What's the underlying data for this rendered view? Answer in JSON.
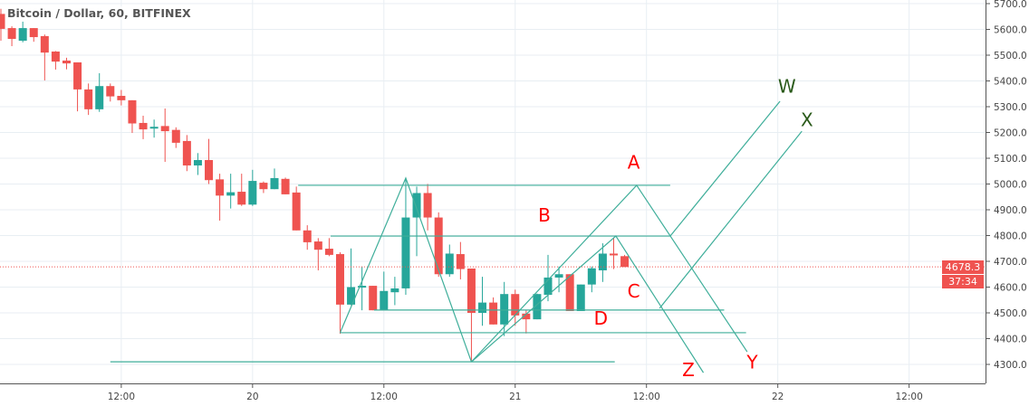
{
  "header": {
    "title": "Bitcoin / Dollar, 60, BITFINEX"
  },
  "colors": {
    "up": "#26a69a",
    "down": "#ef5350",
    "drawing": "#3fae9a",
    "label_red": "#ff0000",
    "label_green": "#2a5a1a",
    "grid": "#e8eef3"
  },
  "price_label": {
    "last": "4678.3",
    "countdown": "37:34"
  },
  "chart_data": {
    "type": "candlestick",
    "symbol": "Bitcoin / Dollar",
    "interval": "60",
    "exchange": "BITFINEX",
    "ylim": [
      4260,
      5710
    ],
    "y_ticks": [
      "4300.0",
      "4400.0",
      "4500.0",
      "4600.0",
      "4700.0",
      "4800.0",
      "4900.0",
      "5000.0",
      "5100.0",
      "5200.0",
      "5300.0",
      "5400.0",
      "5500.0",
      "5600.0",
      "5700.0"
    ],
    "x_ticks": [
      {
        "t": "19 12:00",
        "label": "12:00"
      },
      {
        "t": "20 00:00",
        "label": "20"
      },
      {
        "t": "20 12:00",
        "label": "12:00"
      },
      {
        "t": "21 00:00",
        "label": "21"
      },
      {
        "t": "21 12:00",
        "label": "12:00"
      },
      {
        "t": "22 00:00",
        "label": "22"
      },
      {
        "t": "22 12:00",
        "label": "12:00"
      }
    ],
    "last_price": 4678.3,
    "candles": [
      [
        "19 01:00",
        5660,
        5680,
        5556,
        5602
      ],
      [
        "19 02:00",
        5605,
        5612,
        5535,
        5563
      ],
      [
        "19 03:00",
        5556,
        5630,
        5550,
        5605
      ],
      [
        "19 04:00",
        5605,
        5605,
        5552,
        5570
      ],
      [
        "19 05:00",
        5574,
        5580,
        5402,
        5510
      ],
      [
        "19 06:00",
        5514,
        5516,
        5444,
        5475
      ],
      [
        "19 07:00",
        5479,
        5490,
        5445,
        5468
      ],
      [
        "19 08:00",
        5472,
        5472,
        5282,
        5367
      ],
      [
        "19 09:00",
        5367,
        5390,
        5268,
        5290
      ],
      [
        "19 10:00",
        5290,
        5430,
        5280,
        5380
      ],
      [
        "19 11:00",
        5380,
        5390,
        5320,
        5340
      ],
      [
        "19 12:00",
        5342,
        5365,
        5305,
        5325
      ],
      [
        "19 13:00",
        5325,
        5325,
        5198,
        5235
      ],
      [
        "19 14:00",
        5237,
        5265,
        5174,
        5212
      ],
      [
        "19 15:00",
        5215,
        5250,
        5180,
        5222
      ],
      [
        "19 16:00",
        5225,
        5293,
        5086,
        5205
      ],
      [
        "19 17:00",
        5210,
        5220,
        5140,
        5160
      ],
      [
        "19 18:00",
        5167,
        5190,
        5050,
        5072
      ],
      [
        "19 19:00",
        5072,
        5120,
        5035,
        5093
      ],
      [
        "19 20:00",
        5093,
        5175,
        5000,
        5015
      ],
      [
        "19 21:00",
        5018,
        5040,
        4858,
        4955
      ],
      [
        "19 22:00",
        4955,
        5040,
        4905,
        4968
      ],
      [
        "19 23:00",
        4970,
        5040,
        4915,
        4920
      ],
      [
        "20 00:00",
        4920,
        5055,
        4915,
        5012
      ],
      [
        "20 01:00",
        5005,
        5010,
        4965,
        4980
      ],
      [
        "20 02:00",
        4980,
        5060,
        4980,
        5023
      ],
      [
        "20 03:00",
        5020,
        5025,
        4960,
        4960
      ],
      [
        "20 04:00",
        4967,
        4990,
        4820,
        4820
      ],
      [
        "20 05:00",
        4820,
        4840,
        4745,
        4774
      ],
      [
        "20 06:00",
        4777,
        4790,
        4665,
        4745
      ],
      [
        "20 07:00",
        4749,
        4790,
        4720,
        4725
      ],
      [
        "20 08:00",
        4728,
        4735,
        4419,
        4532
      ],
      [
        "20 09:00",
        4532,
        4750,
        4530,
        4600
      ],
      [
        "20 10:00",
        4598,
        4680,
        4510,
        4605
      ],
      [
        "20 11:00",
        4605,
        4605,
        4510,
        4510
      ],
      [
        "20 12:00",
        4510,
        4660,
        4510,
        4585
      ],
      [
        "20 13:00",
        4580,
        4640,
        4530,
        4595
      ],
      [
        "20 14:00",
        4595,
        5020,
        4570,
        4870
      ],
      [
        "20 15:00",
        4870,
        4990,
        4720,
        4965
      ],
      [
        "20 16:00",
        4965,
        5000,
        4820,
        4870
      ],
      [
        "20 17:00",
        4870,
        4890,
        4640,
        4650
      ],
      [
        "20 18:00",
        4650,
        4765,
        4640,
        4730
      ],
      [
        "20 19:00",
        4728,
        4775,
        4630,
        4670
      ],
      [
        "20 20:00",
        4672,
        4672,
        4310,
        4500
      ],
      [
        "20 21:00",
        4500,
        4640,
        4450,
        4540
      ],
      [
        "20 22:00",
        4540,
        4560,
        4455,
        4455
      ],
      [
        "20 23:00",
        4455,
        4620,
        4410,
        4573
      ],
      [
        "21 00:00",
        4573,
        4590,
        4450,
        4490
      ],
      [
        "21 01:00",
        4497,
        4510,
        4420,
        4475
      ],
      [
        "21 02:00",
        4475,
        4575,
        4475,
        4573
      ],
      [
        "21 03:00",
        4570,
        4725,
        4545,
        4637
      ],
      [
        "21 04:00",
        4637,
        4680,
        4580,
        4650
      ],
      [
        "21 05:00",
        4650,
        4650,
        4507,
        4507
      ],
      [
        "21 06:00",
        4507,
        4610,
        4507,
        4610
      ],
      [
        "21 07:00",
        4610,
        4680,
        4580,
        4673
      ],
      [
        "21 08:00",
        4665,
        4770,
        4620,
        4730
      ],
      [
        "21 09:00",
        4730,
        4790,
        4670,
        4723
      ],
      [
        "21 10:00",
        4720,
        4725,
        4678,
        4678
      ]
    ],
    "drawings": [
      {
        "name": "level-5000-line",
        "points": [
          [
            "20 04:10",
            4995
          ],
          [
            "21 14:10",
            4995
          ]
        ]
      },
      {
        "name": "level-b-line",
        "points": [
          [
            "20 07:08",
            4798
          ],
          [
            "21 14:10",
            4798
          ]
        ]
      },
      {
        "name": "level-c-line",
        "points": [
          [
            "20 11:06",
            4511
          ],
          [
            "21 19:06",
            4511
          ]
        ]
      },
      {
        "name": "level-d-line",
        "points": [
          [
            "20 08:00",
            4423
          ],
          [
            "21 21:06",
            4423
          ]
        ]
      },
      {
        "name": "level-bottom-line",
        "points": [
          [
            "19 11:00",
            4310
          ],
          [
            "21 09:06",
            4310
          ]
        ]
      },
      {
        "name": "zigzag-line",
        "points": [
          [
            "20 08:00",
            4423
          ],
          [
            "20 14:00",
            5023
          ],
          [
            "20 20:00",
            4310
          ]
        ]
      },
      {
        "name": "a-wave-line",
        "points": [
          [
            "20 20:00",
            4310
          ],
          [
            "21 11:06",
            4995
          ],
          [
            "21 21:12",
            4349
          ]
        ]
      },
      {
        "name": "b-wave-line",
        "points": [
          [
            "20 20:00",
            4310
          ],
          [
            "21 09:12",
            4798
          ],
          [
            "21 17:12",
            4268
          ]
        ]
      },
      {
        "name": "w-line",
        "points": [
          [
            "21 14:10",
            4798
          ],
          [
            "22 00:12",
            5321
          ]
        ]
      },
      {
        "name": "x-line",
        "points": [
          [
            "21 13:12",
            4518
          ],
          [
            "22 02:12",
            5205
          ]
        ]
      }
    ],
    "labels": [
      {
        "text": "A",
        "t": "21 10:50",
        "p": 5060,
        "color": "red"
      },
      {
        "text": "B",
        "t": "21 02:40",
        "p": 4855,
        "color": "red"
      },
      {
        "text": "C",
        "t": "21 10:50",
        "p": 4560,
        "color": "red"
      },
      {
        "text": "D",
        "t": "21 07:50",
        "p": 4455,
        "color": "red"
      },
      {
        "text": "Z",
        "t": "21 15:50",
        "p": 4255,
        "color": "red"
      },
      {
        "text": "Y",
        "t": "21 21:40",
        "p": 4285,
        "color": "red"
      },
      {
        "text": "W",
        "t": "22 00:50",
        "p": 5355,
        "color": "green"
      },
      {
        "text": "X",
        "t": "22 02:40",
        "p": 5225,
        "color": "green"
      }
    ]
  }
}
